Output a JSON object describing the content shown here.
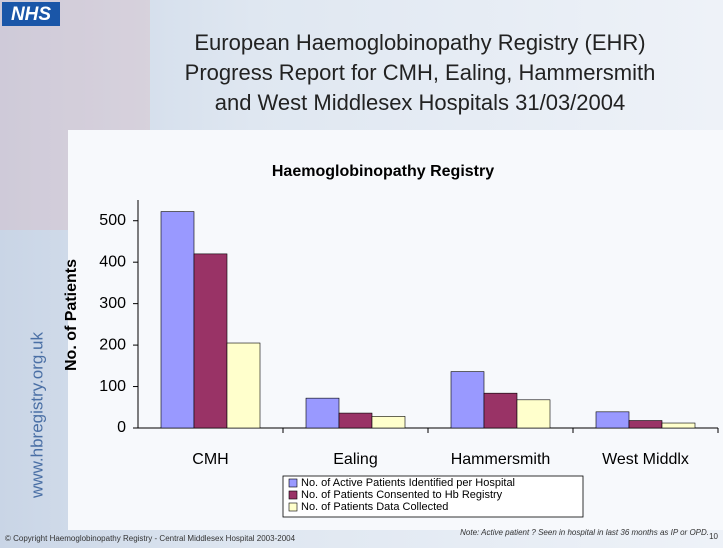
{
  "slide": {
    "logo": "NHS",
    "title_lines": [
      "European Haemoglobinopathy Registry (EHR)",
      "Progress Report for CMH, Ealing, Hammersmith",
      "and West Middlesex Hospitals 31/03/2004"
    ],
    "website": "www.hbregistry.org.uk",
    "copyright": "© Copyright Haemoglobinopathy Registry - Central Middlesex Hospital 2003-2004",
    "note": "Note: Active patient ? Seen in hospital in last 36 months as IP or OPD.",
    "page_number": "10"
  },
  "chart_data": {
    "type": "bar",
    "title": "Haemoglobinopathy Registry",
    "y_label": "No. of Patients",
    "categories": [
      "CMH",
      "Ealing",
      "Hammersmith",
      "West Middlx"
    ],
    "series": [
      {
        "name": "No. of Active Patients Identified per Hospital",
        "color": "#9999ff",
        "values": [
          522,
          72,
          136,
          39
        ]
      },
      {
        "name": "No. of Patients Consented to Hb Registry",
        "color": "#993366",
        "values": [
          420,
          36,
          84,
          18
        ]
      },
      {
        "name": "No. of Patients Data Collected",
        "color": "#ffffcc",
        "values": [
          205,
          28,
          68,
          12
        ]
      }
    ],
    "ylim": [
      0,
      550
    ],
    "yticks": [
      0,
      100,
      200,
      300,
      400,
      500
    ],
    "grid": false
  }
}
